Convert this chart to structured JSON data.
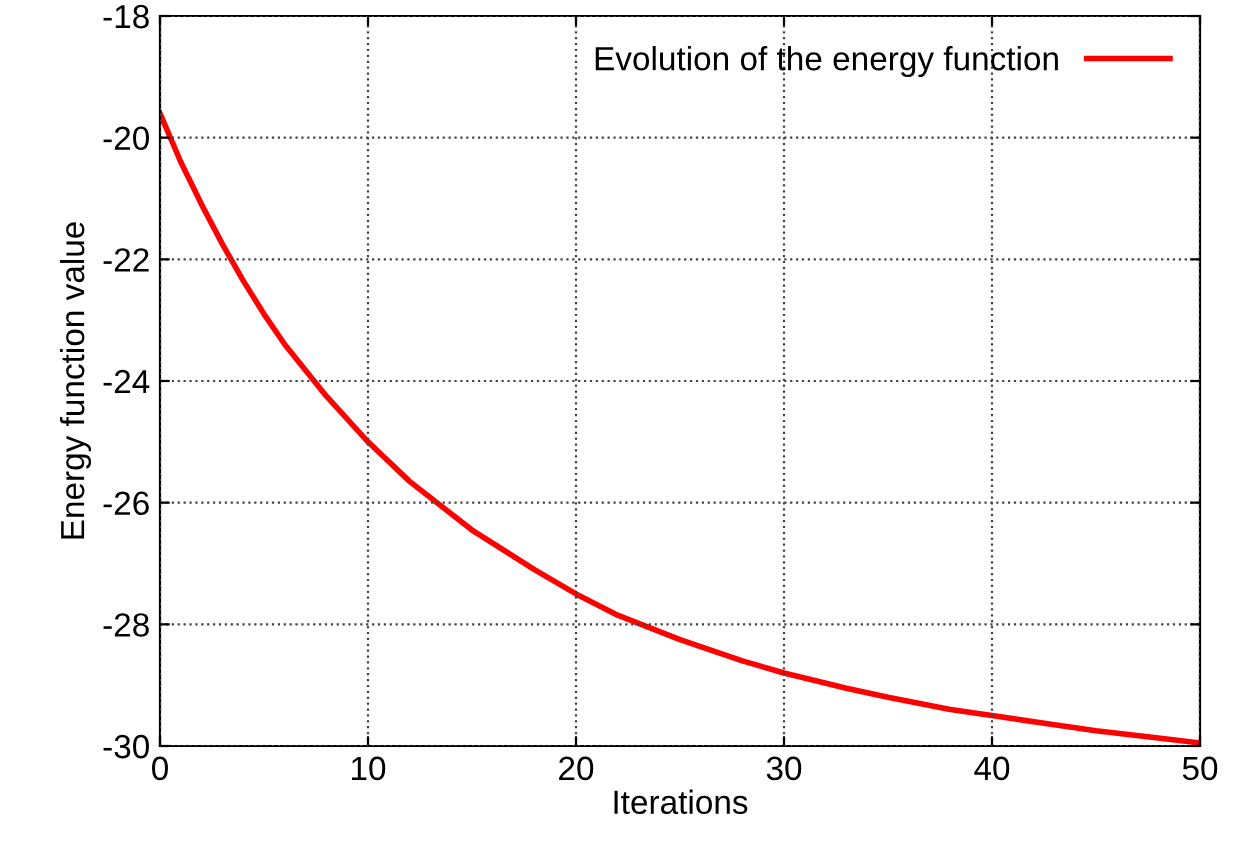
{
  "chart_data": {
    "type": "line",
    "xlabel": "Iterations",
    "ylabel": "Energy function value",
    "series": [
      {
        "name": "Evolution of the energy function",
        "color": "#ff0000",
        "x": [
          0,
          1,
          2,
          3,
          4,
          5,
          6,
          8,
          10,
          12,
          15,
          18,
          20,
          22,
          25,
          28,
          30,
          33,
          35,
          38,
          40,
          43,
          45,
          48,
          50
        ],
        "values": [
          -19.6,
          -20.4,
          -21.1,
          -21.75,
          -22.35,
          -22.9,
          -23.4,
          -24.25,
          -25.0,
          -25.65,
          -26.45,
          -27.1,
          -27.5,
          -27.85,
          -28.25,
          -28.6,
          -28.8,
          -29.05,
          -29.2,
          -29.4,
          -29.5,
          -29.65,
          -29.75,
          -29.87,
          -29.95
        ]
      }
    ],
    "xlim": [
      0,
      50
    ],
    "ylim": [
      -30,
      -18
    ],
    "xticks": [
      0,
      10,
      20,
      30,
      40,
      50
    ],
    "yticks": [
      -30,
      -28,
      -26,
      -24,
      -22,
      -20,
      -18
    ],
    "grid": true,
    "legend": "top right",
    "line_style": "solid",
    "marker": "none"
  }
}
